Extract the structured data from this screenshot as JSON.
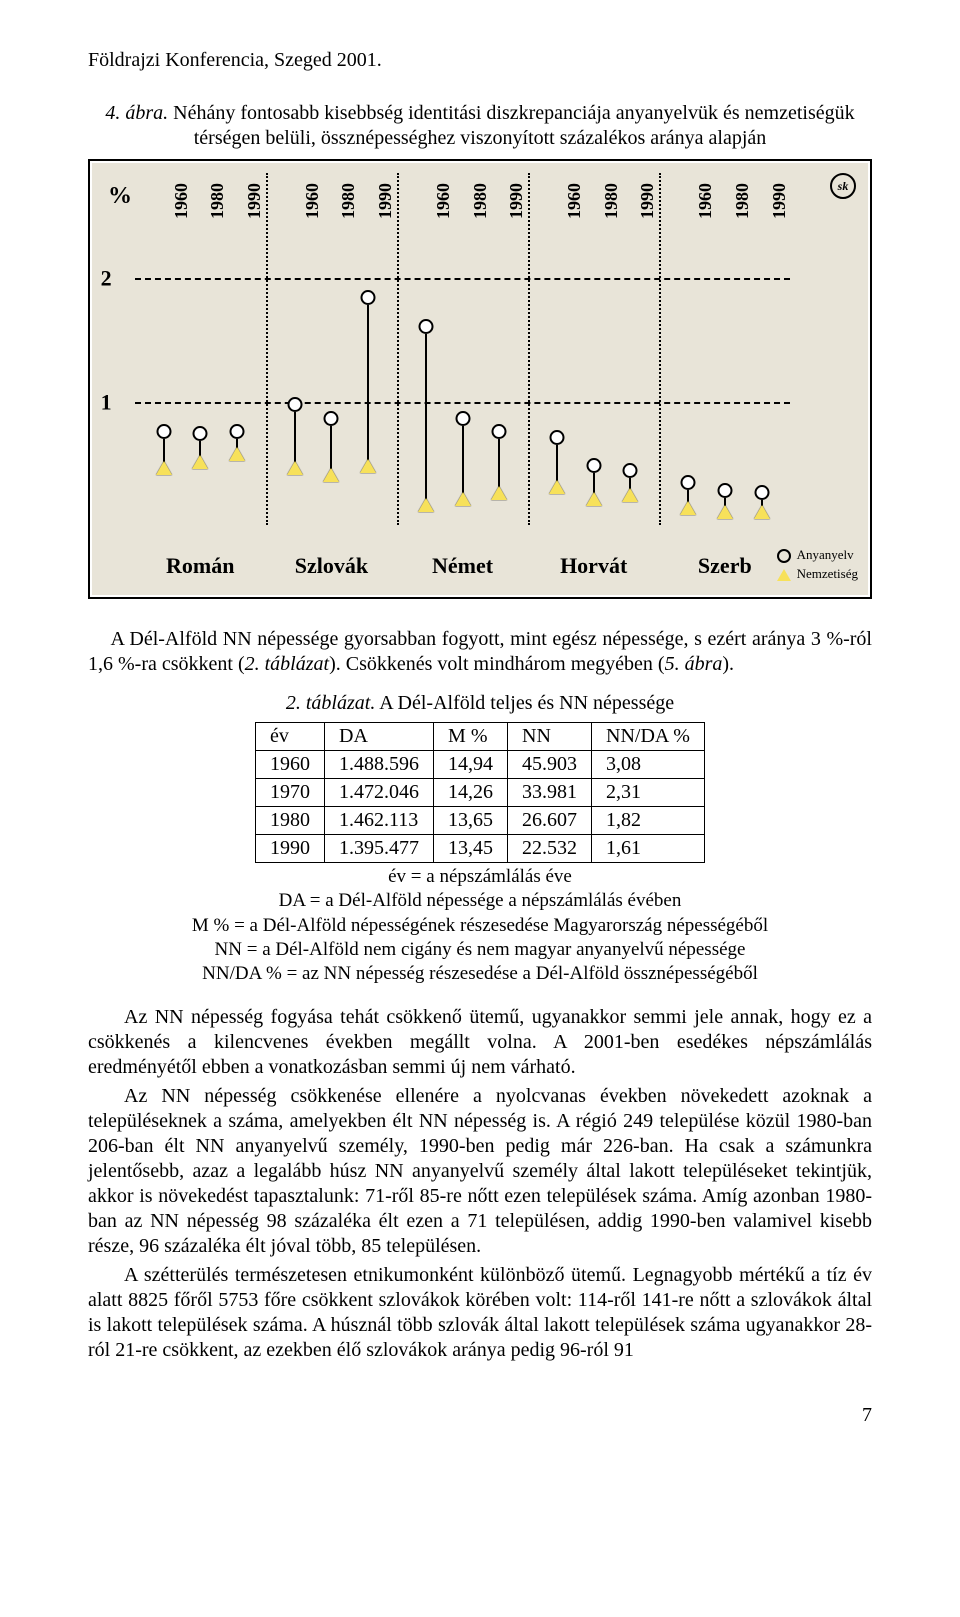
{
  "running_head": "Földrajzi Konferencia, Szeged 2001.",
  "figure": {
    "caption_prefix": "4. ábra.",
    "caption_body": " Néhány fontosabb kisebbség identitási diszkrepanciája anyanyelvük és nemzetiségük térségen belüli, össznépességhez viszonyított százalékos aránya alapján",
    "pct_label": "%",
    "y_ticks": [
      "2",
      "1"
    ],
    "y_tick_values": [
      2,
      1
    ],
    "y_max": 2.4,
    "years": [
      "1960",
      "1980",
      "1990",
      "1960",
      "1980",
      "1990",
      "1960",
      "1980",
      "1990",
      "1960",
      "1980",
      "1990",
      "1960",
      "1980",
      "1990"
    ],
    "groups": [
      "Román",
      "Szlovák",
      "Német",
      "Horvát",
      "Szerb"
    ],
    "legend": {
      "line1": "Anyanyelv",
      "line2": "Nemzetiség"
    },
    "sk_badge": "sk",
    "colors": {
      "plot_bg": "#e8e4d8",
      "marker_fill": "#f7e15a",
      "stroke": "#000000"
    },
    "series": [
      {
        "group": 0,
        "slot": 0,
        "top": 0.7,
        "bottom": 0.5
      },
      {
        "group": 0,
        "slot": 1,
        "top": 0.68,
        "bottom": 0.55
      },
      {
        "group": 0,
        "slot": 2,
        "top": 0.7,
        "bottom": 0.62
      },
      {
        "group": 1,
        "slot": 0,
        "top": 0.92,
        "bottom": 0.5
      },
      {
        "group": 1,
        "slot": 1,
        "top": 0.8,
        "bottom": 0.45
      },
      {
        "group": 1,
        "slot": 2,
        "top": 1.78,
        "bottom": 0.52
      },
      {
        "group": 2,
        "slot": 0,
        "top": 1.55,
        "bottom": 0.2
      },
      {
        "group": 2,
        "slot": 1,
        "top": 0.8,
        "bottom": 0.25
      },
      {
        "group": 2,
        "slot": 2,
        "top": 0.7,
        "bottom": 0.3
      },
      {
        "group": 3,
        "slot": 0,
        "top": 0.65,
        "bottom": 0.35
      },
      {
        "group": 3,
        "slot": 1,
        "top": 0.42,
        "bottom": 0.25
      },
      {
        "group": 3,
        "slot": 2,
        "top": 0.38,
        "bottom": 0.28
      },
      {
        "group": 4,
        "slot": 0,
        "top": 0.28,
        "bottom": 0.18
      },
      {
        "group": 4,
        "slot": 1,
        "top": 0.22,
        "bottom": 0.15
      },
      {
        "group": 4,
        "slot": 2,
        "top": 0.2,
        "bottom": 0.15
      }
    ]
  },
  "para_after_fig": "A Dél-Alföld NN népessége gyorsabban fogyott, mint egész népessége, s ezért aránya 3 %-ról 1,6 %-ra csökkent (",
  "para_after_fig_i1": "2. táblázat",
  "para_after_fig_mid": "). Csökkenés volt mindhárom megyében (",
  "para_after_fig_i2": "5. ábra",
  "para_after_fig_end": ").",
  "table_caption_prefix": "2. táblázat.",
  "table_caption_body": " A Dél-Alföld teljes és NN népessége",
  "table": {
    "columns": [
      "év",
      "DA",
      "M %",
      "NN",
      "NN/DA %"
    ],
    "rows": [
      [
        "1960",
        "1.488.596",
        "14,94",
        "45.903",
        "3,08"
      ],
      [
        "1970",
        "1.472.046",
        "14,26",
        "33.981",
        "2,31"
      ],
      [
        "1980",
        "1.462.113",
        "13,65",
        "26.607",
        "1,82"
      ],
      [
        "1990",
        "1.395.477",
        "13,45",
        "22.532",
        "1,61"
      ]
    ]
  },
  "table_legend": {
    "l1": "év = a népszámlálás éve",
    "l2": "DA = a Dél-Alföld népessége a népszámlálás évében",
    "l3": "M % = a Dél-Alföld népességének részesedése Magyarország népességéből",
    "l4": "NN = a Dél-Alföld nem cigány és nem magyar anyanyelvű népessége",
    "l5": "NN/DA % = az NN népesség részesedése a Dél-Alföld össznépességéből"
  },
  "body": {
    "p1": "Az NN népesség fogyása tehát csökkenő ütemű, ugyanakkor semmi jele annak, hogy ez a csökkenés a kilencvenes években megállt volna. A 2001-ben esedékes népszámlálás eredményétől ebben a vonatkozásban semmi új nem várható.",
    "p2": "Az NN népesség csökkenése ellenére a nyolcvanas években növekedett azoknak a településeknek a száma, amelyekben élt NN népesség is. A régió 249 települése közül 1980-ban 206-ban élt NN anyanyelvű személy, 1990-ben pedig már 226-ban. Ha csak a számunkra jelentősebb, azaz a legalább húsz NN anyanyelvű személy által lakott településeket tekintjük, akkor is növekedést tapasztalunk: 71-ről 85-re nőtt ezen települések száma. Amíg azonban 1980-ban az NN népesség 98 százaléka élt ezen a 71 településen, addig 1990-ben valamivel kisebb része, 96 százaléka élt jóval több, 85 településen.",
    "p3": "A szétterülés természetesen etnikumonként különböző ütemű. Legnagyobb mértékű a tíz év alatt 8825 főről 5753 főre csökkent szlovákok körében volt: 114-ről 141-re nőtt a szlovákok által is lakott települések száma. A húsznál több szlovák által lakott települések száma ugyanakkor 28-ról 21-re csökkent, az ezekben élő szlovákok aránya pedig 96-ról 91"
  },
  "page_number": "7"
}
